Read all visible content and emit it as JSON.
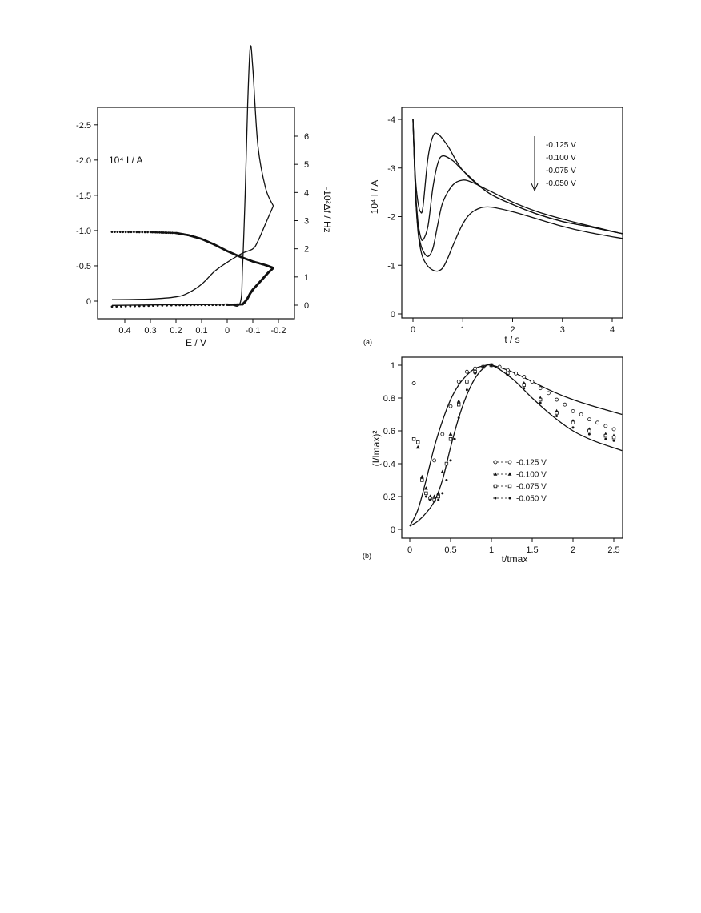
{
  "chart_data": [
    {
      "type": "line",
      "panel": "left",
      "xlabel": "E / V",
      "ylabel_left": "10⁴ I / A",
      "ylabel_right": "-10²Δf / Hz",
      "x_reversed": true,
      "y_left_reversed": true,
      "xlim": [
        0.45,
        -0.2
      ],
      "ylim_left": [
        0,
        -2.6
      ],
      "ylim_right": [
        0,
        6
      ],
      "x_ticks": [
        "0.4",
        "0.3",
        "0.2",
        "0.1",
        "0",
        "-0.1",
        "-0.2"
      ],
      "y_left_ticks": [
        "0",
        "-0.5",
        "-1.0",
        "-1.5",
        "-2.0",
        "-2.5"
      ],
      "y_right_ticks": [
        "0",
        "1",
        "2",
        "3",
        "4",
        "5",
        "6"
      ],
      "series": [
        {
          "style": "points",
          "x": [
            0.45,
            0.3,
            0.2,
            0.15,
            0.1,
            0.05,
            0.0,
            -0.05,
            -0.1,
            -0.15,
            -0.18
          ],
          "y": [
            2.6,
            2.59,
            2.56,
            2.48,
            2.35,
            2.15,
            1.92,
            1.72,
            1.55,
            1.42,
            1.32
          ]
        },
        {
          "style": "points",
          "x": [
            -0.18,
            -0.16,
            -0.14,
            -0.12,
            -0.1,
            -0.09,
            -0.08,
            -0.07,
            -0.06,
            0.0,
            0.2,
            0.45
          ],
          "y": [
            1.32,
            1.15,
            0.95,
            0.75,
            0.55,
            0.42,
            0.25,
            0.12,
            0.03,
            0.01,
            0.0,
            -0.05
          ]
        },
        {
          "style": "line",
          "x": [
            0.45,
            0.2,
            0.1,
            0.0,
            -0.05,
            -0.06,
            -0.07,
            -0.08,
            -0.09,
            -0.1,
            -0.12,
            -0.15,
            -0.18
          ],
          "y": [
            -0.06,
            -0.05,
            -0.05,
            -0.04,
            -0.03,
            0.5,
            1.5,
            2.8,
            3.6,
            3.3,
            2.2,
            1.6,
            1.35
          ]
        },
        {
          "style": "line",
          "x": [
            -0.18,
            -0.15,
            -0.12,
            -0.1,
            -0.06,
            0.0,
            0.05,
            0.1,
            0.15,
            0.2,
            0.3,
            0.45
          ],
          "y": [
            1.35,
            1.1,
            0.85,
            0.74,
            0.68,
            0.55,
            0.42,
            0.24,
            0.12,
            0.06,
            0.03,
            0.02
          ]
        }
      ]
    },
    {
      "type": "line",
      "panel": "(a)",
      "xlabel": "t / s",
      "ylabel": "10⁴ I / A",
      "y_reversed": true,
      "xlim": [
        -0.2,
        4.2
      ],
      "ylim": [
        0,
        -4
      ],
      "x_ticks": [
        "0",
        "1",
        "2",
        "3",
        "4"
      ],
      "y_ticks": [
        "0",
        "-1",
        "-2",
        "-3",
        "-4"
      ],
      "legend": [
        "-0.125 V",
        "-0.100 V",
        "-0.075 V",
        "-0.050 V"
      ],
      "legend_position": "top-right",
      "series": [
        {
          "legend": "-0.125 V",
          "x": [
            0.0,
            0.05,
            0.1,
            0.15,
            0.2,
            0.3,
            0.4,
            0.5,
            0.7,
            1.0,
            1.5,
            2.0,
            2.5,
            3.0,
            3.5,
            4.2
          ],
          "y": [
            -4.0,
            -2.8,
            -2.3,
            -2.1,
            -2.2,
            -3.2,
            -3.65,
            -3.7,
            -3.45,
            -2.95,
            -2.5,
            -2.25,
            -2.05,
            -1.9,
            -1.8,
            -1.65
          ]
        },
        {
          "legend": "-0.100 V",
          "x": [
            0.0,
            0.05,
            0.1,
            0.15,
            0.2,
            0.3,
            0.4,
            0.5,
            0.6,
            0.8,
            1.0,
            1.5,
            2.0,
            2.5,
            3.0,
            3.5,
            4.2
          ],
          "y": [
            -4.0,
            -2.6,
            -1.9,
            -1.6,
            -1.52,
            -1.8,
            -2.6,
            -3.1,
            -3.25,
            -3.15,
            -2.95,
            -2.5,
            -2.25,
            -2.05,
            -1.9,
            -1.8,
            -1.65
          ]
        },
        {
          "legend": "-0.075 V",
          "x": [
            0.0,
            0.05,
            0.1,
            0.15,
            0.2,
            0.3,
            0.4,
            0.5,
            0.6,
            0.8,
            1.0,
            1.2,
            1.5,
            2.0,
            2.5,
            3.0,
            3.5,
            4.2
          ],
          "y": [
            -4.0,
            -2.5,
            -1.75,
            -1.45,
            -1.3,
            -1.18,
            -1.35,
            -1.85,
            -2.3,
            -2.65,
            -2.75,
            -2.7,
            -2.55,
            -2.3,
            -2.1,
            -1.95,
            -1.82,
            -1.65
          ]
        },
        {
          "legend": "-0.050 V",
          "x": [
            0.0,
            0.05,
            0.1,
            0.15,
            0.2,
            0.3,
            0.4,
            0.5,
            0.6,
            0.7,
            0.8,
            1.0,
            1.2,
            1.5,
            2.0,
            2.5,
            3.0,
            3.5,
            4.2
          ],
          "y": [
            -4.0,
            -2.5,
            -1.7,
            -1.35,
            -1.15,
            -0.98,
            -0.9,
            -0.88,
            -0.95,
            -1.15,
            -1.4,
            -1.85,
            -2.1,
            -2.2,
            -2.1,
            -1.95,
            -1.8,
            -1.68,
            -1.55
          ]
        }
      ]
    },
    {
      "type": "scatter",
      "panel": "(b)",
      "xlabel": "t/tmax",
      "ylabel": "(I/Imax)²",
      "xlim": [
        -0.1,
        2.6
      ],
      "ylim": [
        0,
        1.0
      ],
      "x_ticks": [
        "0",
        "0.5",
        "1",
        "1.5",
        "2",
        "2.5"
      ],
      "y_ticks": [
        "0",
        "0.2",
        "0.4",
        "0.6",
        "0.8",
        "1"
      ],
      "legend": [
        "-0.125 V",
        "-0.100 V",
        "-0.075 V",
        "-0.050 V"
      ],
      "legend_position": "center-right",
      "model_curves": [
        {
          "x": [
            0.0,
            0.1,
            0.2,
            0.3,
            0.4,
            0.5,
            0.6,
            0.7,
            0.8,
            0.9,
            1.0,
            1.25,
            1.5,
            1.75,
            2.0,
            2.25,
            2.6
          ],
          "y": [
            0.02,
            0.12,
            0.3,
            0.5,
            0.66,
            0.79,
            0.88,
            0.94,
            0.98,
            0.995,
            1.0,
            0.96,
            0.9,
            0.84,
            0.79,
            0.75,
            0.7
          ]
        },
        {
          "x": [
            0.0,
            0.1,
            0.2,
            0.3,
            0.4,
            0.5,
            0.6,
            0.7,
            0.8,
            0.9,
            1.0,
            1.25,
            1.5,
            1.75,
            2.0,
            2.25,
            2.6
          ],
          "y": [
            0.02,
            0.05,
            0.1,
            0.17,
            0.3,
            0.5,
            0.68,
            0.82,
            0.92,
            0.98,
            1.0,
            0.92,
            0.8,
            0.69,
            0.6,
            0.54,
            0.48
          ]
        }
      ],
      "series": [
        {
          "legend": "-0.125 V",
          "marker": "circle-open",
          "x": [
            0.05,
            0.3,
            0.4,
            0.5,
            0.6,
            0.7,
            0.8,
            0.9,
            1.0,
            1.1,
            1.2,
            1.3,
            1.4,
            1.5,
            1.6,
            1.7,
            1.8,
            1.9,
            2.0,
            2.1,
            2.2,
            2.3,
            2.4,
            2.5
          ],
          "y": [
            0.89,
            0.42,
            0.58,
            0.75,
            0.9,
            0.96,
            0.98,
            0.99,
            1.0,
            0.99,
            0.97,
            0.95,
            0.93,
            0.9,
            0.86,
            0.83,
            0.79,
            0.76,
            0.72,
            0.7,
            0.67,
            0.65,
            0.63,
            0.61
          ]
        },
        {
          "legend": "-0.100 V",
          "marker": "triangle",
          "x": [
            0.1,
            0.15,
            0.2,
            0.25,
            0.3,
            0.35,
            0.4,
            0.5,
            0.6,
            0.7,
            0.8,
            0.9,
            1.0,
            1.2,
            1.4,
            1.6,
            1.8,
            2.0,
            2.2,
            2.4,
            2.5
          ],
          "y": [
            0.5,
            0.32,
            0.25,
            0.2,
            0.2,
            0.22,
            0.35,
            0.58,
            0.78,
            0.9,
            0.96,
            0.99,
            1.0,
            0.95,
            0.89,
            0.8,
            0.72,
            0.66,
            0.61,
            0.58,
            0.57
          ]
        },
        {
          "legend": "-0.075 V",
          "marker": "square-open",
          "x": [
            0.05,
            0.1,
            0.15,
            0.2,
            0.25,
            0.3,
            0.35,
            0.45,
            0.5,
            0.6,
            0.7,
            0.8,
            0.9,
            1.0,
            1.2,
            1.4,
            1.6,
            1.8,
            2.0,
            2.2,
            2.4,
            2.5
          ],
          "y": [
            0.55,
            0.53,
            0.3,
            0.22,
            0.19,
            0.18,
            0.2,
            0.4,
            0.55,
            0.76,
            0.9,
            0.96,
            0.99,
            1.0,
            0.95,
            0.88,
            0.79,
            0.71,
            0.65,
            0.6,
            0.57,
            0.56
          ]
        },
        {
          "legend": "-0.050 V",
          "marker": "dot",
          "x": [
            0.2,
            0.25,
            0.3,
            0.35,
            0.4,
            0.45,
            0.5,
            0.55,
            0.6,
            0.7,
            0.8,
            0.9,
            1.0,
            1.2,
            1.4,
            1.6,
            1.8,
            2.0,
            2.2,
            2.4,
            2.5
          ],
          "y": [
            0.2,
            0.18,
            0.17,
            0.18,
            0.22,
            0.3,
            0.42,
            0.55,
            0.68,
            0.85,
            0.95,
            0.99,
            1.0,
            0.94,
            0.86,
            0.77,
            0.69,
            0.62,
            0.58,
            0.55,
            0.54
          ]
        }
      ]
    }
  ]
}
